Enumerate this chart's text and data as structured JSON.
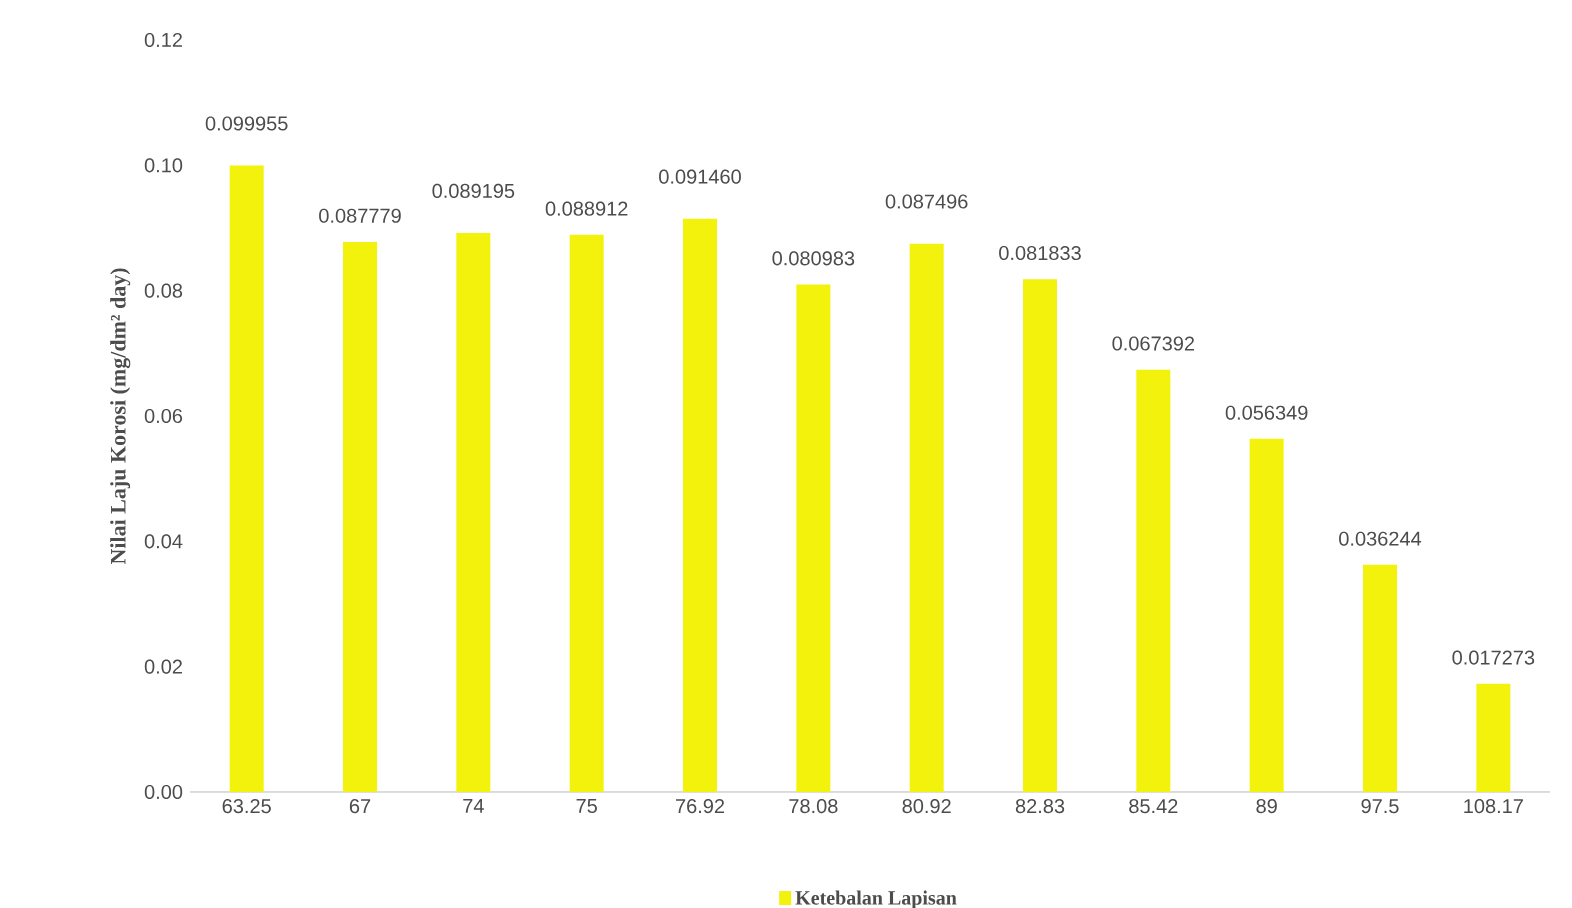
{
  "chart_data": {
    "type": "bar",
    "ylabel": "Nilai Laju Korosi (mg/dm² day)",
    "categories": [
      "63.25",
      "67",
      "74",
      "75",
      "76.92",
      "78.08",
      "80.92",
      "82.83",
      "85.42",
      "89",
      "97.5",
      "108.17"
    ],
    "series": [
      {
        "name": "Ketebalan Lapisan",
        "color": "#f2f20c",
        "values": [
          0.099955,
          0.087779,
          0.089195,
          0.088912,
          0.09146,
          0.080983,
          0.087496,
          0.081833,
          0.067392,
          0.056349,
          0.036244,
          0.017273
        ],
        "value_labels": [
          "0.099955",
          "0.087779",
          "0.089195",
          "0.088912",
          "0.091460",
          "0.080983",
          "0.087496",
          "0.081833",
          "0.067392",
          "0.056349",
          "0.036244",
          "0.017273"
        ]
      }
    ],
    "ylim": [
      0,
      0.12
    ],
    "yticks": [
      {
        "value": 0,
        "label": "0.00"
      },
      {
        "value": 0.02,
        "label": "0.02"
      },
      {
        "value": 0.04,
        "label": "0.04"
      },
      {
        "value": 0.06,
        "label": "0.06"
      },
      {
        "value": 0.08,
        "label": "0.08"
      },
      {
        "value": 0.1,
        "label": "0.10"
      },
      {
        "value": 0.12,
        "label": "0.12"
      }
    ],
    "legend": "bottom"
  }
}
